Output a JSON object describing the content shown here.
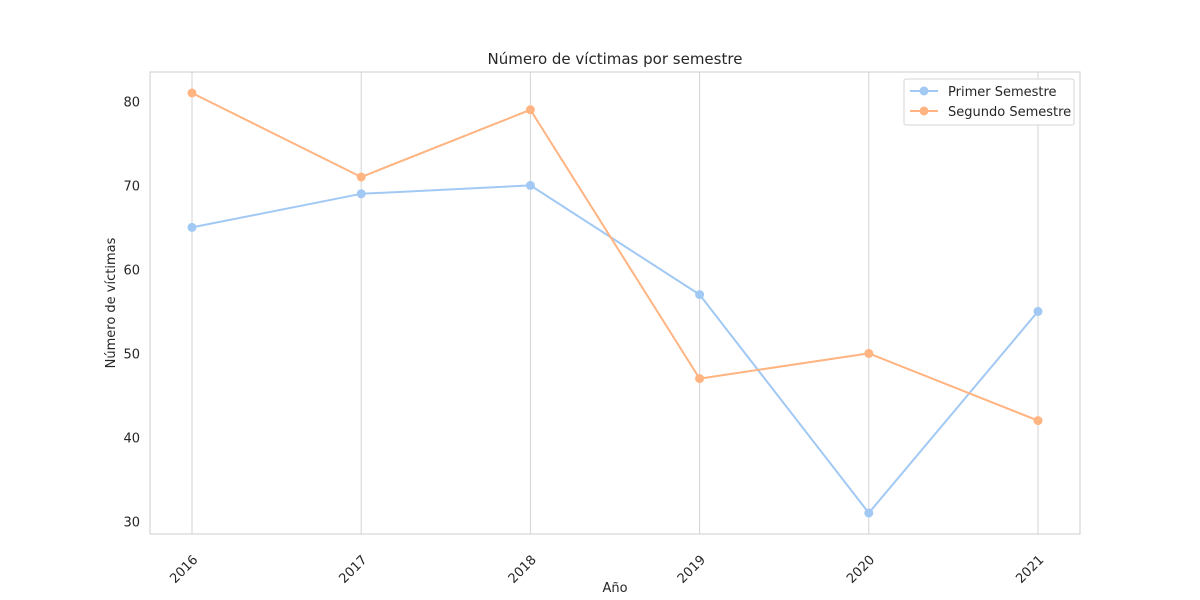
{
  "chart_data": {
    "type": "line",
    "title": "Número de víctimas por semestre",
    "xlabel": "Año",
    "ylabel": "Número de víctimas",
    "x": [
      "2016",
      "2017",
      "2018",
      "2019",
      "2020",
      "2021"
    ],
    "yticks": [
      30,
      40,
      50,
      60,
      70,
      80
    ],
    "ylim": [
      28.5,
      83.5
    ],
    "grid": "vertical",
    "legend_position": "top-right",
    "series": [
      {
        "name": "Primer Semestre",
        "color": "#a1c9f4",
        "values": [
          65,
          69,
          70,
          57,
          31,
          55
        ]
      },
      {
        "name": "Segundo Semestre",
        "color": "#ffb482",
        "values": [
          81,
          71,
          79,
          47,
          50,
          42
        ]
      }
    ]
  }
}
